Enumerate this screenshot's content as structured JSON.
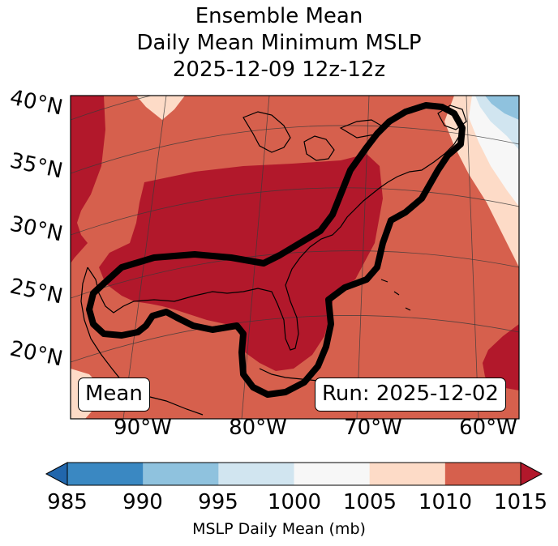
{
  "title": {
    "line1": "Ensemble Mean",
    "line2": "Daily Mean Minimum MSLP",
    "line3": "2025-12-09 12z-12z"
  },
  "map": {
    "lat_labels": [
      "40°N",
      "35°N",
      "30°N",
      "25°N",
      "20°N"
    ],
    "lon_labels": [
      "90°W",
      "80°W",
      "70°W",
      "60°W"
    ],
    "mean_label": "Mean",
    "run_label": "Run: 2025-12-02",
    "contour_color": "#000000"
  },
  "colorbar": {
    "ticks": [
      "985",
      "990",
      "995",
      "1000",
      "1005",
      "1010",
      "1015"
    ],
    "label": "MSLP Daily Mean (mb)",
    "colors": [
      "#3a88c2",
      "#8fc2de",
      "#d1e5f0",
      "#f7f7f7",
      "#fddbc7",
      "#d6604d",
      "#b2182b"
    ],
    "extend": "both"
  }
}
